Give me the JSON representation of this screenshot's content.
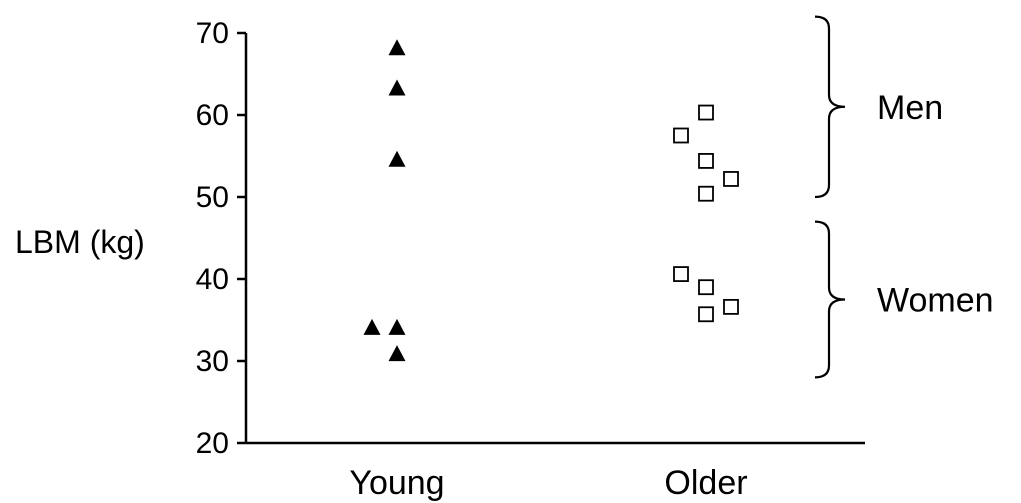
{
  "chart_data": {
    "type": "scatter",
    "title": "",
    "ylabel": "LBM (kg)",
    "xlabel": "",
    "ylim": [
      20,
      70
    ],
    "yticks": [
      20,
      30,
      40,
      50,
      60,
      70
    ],
    "categories": [
      "Young",
      "Older"
    ],
    "grid": false,
    "series": [
      {
        "category": "Young",
        "marker": "filled-triangle",
        "points": [
          {
            "offset": 0,
            "y": 68.2
          },
          {
            "offset": 0,
            "y": 63.3
          },
          {
            "offset": 0,
            "y": 54.6
          },
          {
            "offset": -1,
            "y": 34.1
          },
          {
            "offset": 0,
            "y": 34.1
          },
          {
            "offset": 0,
            "y": 30.9
          }
        ]
      },
      {
        "category": "Older",
        "marker": "open-square",
        "points": [
          {
            "offset": 0,
            "y": 60.3
          },
          {
            "offset": -1,
            "y": 57.5
          },
          {
            "offset": 0,
            "y": 54.4
          },
          {
            "offset": 1,
            "y": 52.2
          },
          {
            "offset": 0,
            "y": 50.4
          },
          {
            "offset": -1,
            "y": 40.6
          },
          {
            "offset": 0,
            "y": 39.0
          },
          {
            "offset": 1,
            "y": 36.6
          },
          {
            "offset": 0,
            "y": 35.7
          }
        ]
      }
    ],
    "annotations": [
      {
        "label": "Men",
        "y_range": [
          50,
          72
        ]
      },
      {
        "label": "Women",
        "y_range": [
          28,
          47
        ]
      }
    ],
    "colors": {
      "marker": "#000000",
      "axis": "#000000"
    }
  }
}
